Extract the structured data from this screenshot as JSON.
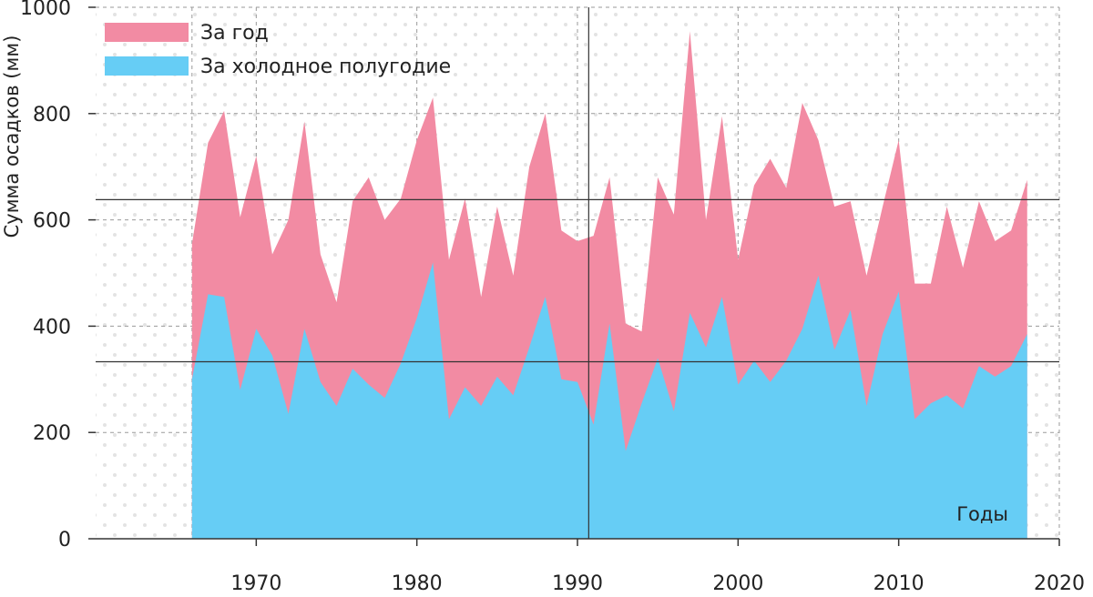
{
  "chart_data": {
    "type": "area",
    "ylabel": "Сумма осадков (мм)",
    "xlabel": "Годы",
    "xlim": [
      1960,
      2020
    ],
    "ylim": [
      0,
      1000
    ],
    "x_ticks": [
      "1970",
      "1980",
      "1990",
      "2000",
      "2010",
      "2020"
    ],
    "y_ticks": [
      "0",
      "200",
      "400",
      "600",
      "800",
      "1000"
    ],
    "grid": true,
    "legend_position": "top-left",
    "x": [
      1966,
      1967,
      1968,
      1969,
      1970,
      1971,
      1972,
      1973,
      1974,
      1975,
      1976,
      1977,
      1978,
      1979,
      1980,
      1981,
      1982,
      1983,
      1984,
      1985,
      1986,
      1987,
      1988,
      1989,
      1990,
      1991,
      1992,
      1993,
      1994,
      1995,
      1996,
      1997,
      1998,
      1999,
      2000,
      2001,
      2002,
      2003,
      2004,
      2005,
      2006,
      2007,
      2008,
      2009,
      2010,
      2011,
      2012,
      2013,
      2014,
      2015,
      2016,
      2017,
      2018
    ],
    "series": [
      {
        "name": "За год",
        "color": "#f28ba3",
        "values": [
          555,
          745,
          805,
          605,
          720,
          535,
          600,
          785,
          535,
          445,
          635,
          680,
          600,
          640,
          750,
          830,
          525,
          640,
          455,
          625,
          495,
          700,
          800,
          580,
          560,
          570,
          680,
          405,
          390,
          680,
          610,
          955,
          600,
          795,
          525,
          665,
          715,
          660,
          820,
          750,
          625,
          635,
          495,
          625,
          750,
          480,
          480,
          625,
          510,
          635,
          560,
          580,
          675
        ]
      },
      {
        "name": "За холодное полугодие",
        "color": "#66cdf5",
        "values": [
          300,
          460,
          455,
          280,
          395,
          345,
          235,
          395,
          295,
          250,
          320,
          290,
          265,
          330,
          415,
          520,
          225,
          285,
          250,
          305,
          270,
          360,
          455,
          300,
          295,
          215,
          405,
          165,
          255,
          340,
          240,
          425,
          360,
          455,
          290,
          335,
          295,
          335,
          395,
          495,
          355,
          430,
          250,
          385,
          465,
          225,
          255,
          270,
          245,
          325,
          305,
          325,
          385
        ]
      }
    ],
    "reference_lines": [
      {
        "label": "mean-annual",
        "y": 638
      },
      {
        "label": "mean-cold-half",
        "y": 333
      },
      {
        "label": "vertical-marker",
        "x": 1990.7
      }
    ]
  }
}
